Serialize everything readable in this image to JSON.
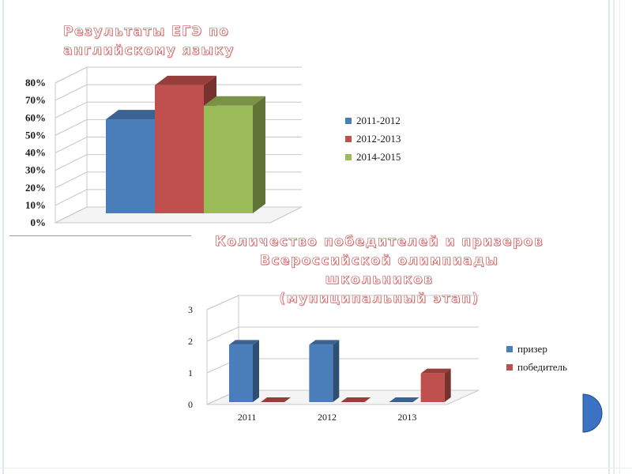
{
  "slide": {
    "title1": "Результаты ЕГЭ по\nанглийскому языку",
    "title2": "Количество победителей и призеров\nВсероссийской олимпиады школьников\n(муниципальный этап)"
  },
  "chart_data": [
    {
      "type": "bar",
      "title": "Результаты ЕГЭ по английскому языку",
      "xlabel": "",
      "ylabel": "",
      "ylim": [
        0,
        80
      ],
      "y_ticks": [
        "0%",
        "10%",
        "20%",
        "30%",
        "40%",
        "50%",
        "60%",
        "70%",
        "80%"
      ],
      "categories": [
        ""
      ],
      "series": [
        {
          "name": "2011-2012",
          "values": [
            55
          ],
          "color": "#4a7ebb"
        },
        {
          "name": "2012-2013",
          "values": [
            75
          ],
          "color": "#c0504d"
        },
        {
          "name": "2014-2015",
          "values": [
            63
          ],
          "color": "#9bbb59"
        }
      ],
      "grid": true,
      "legend": "right"
    },
    {
      "type": "bar",
      "title": "Количество победителей и призеров Всероссийской олимпиады школьников (муниципальный этап)",
      "xlabel": "",
      "ylabel": "",
      "ylim": [
        0,
        3
      ],
      "y_ticks": [
        "0",
        "1",
        "2",
        "3"
      ],
      "categories": [
        "2011",
        "2012",
        "2013"
      ],
      "series": [
        {
          "name": "призер",
          "values": [
            2,
            2,
            0
          ],
          "color": "#4a7ebb"
        },
        {
          "name": "победитель",
          "values": [
            0,
            0,
            1
          ],
          "color": "#c0504d"
        }
      ],
      "grid": true,
      "legend": "right"
    }
  ]
}
